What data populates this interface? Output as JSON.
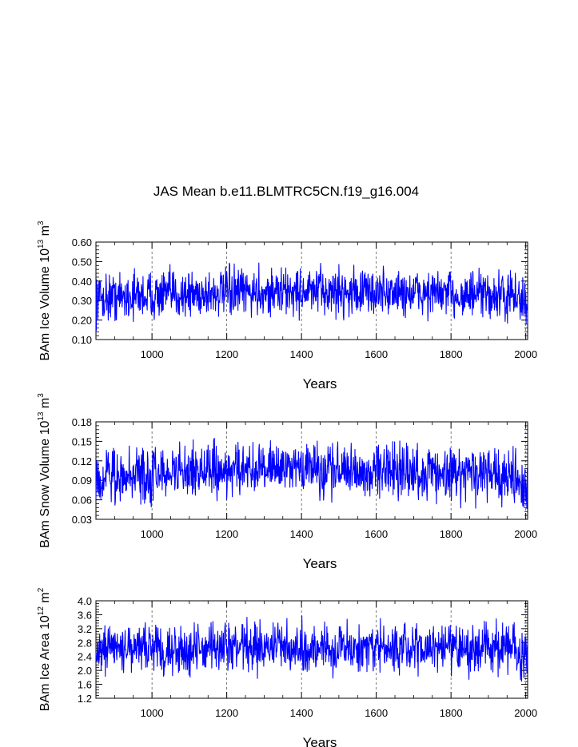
{
  "chart_data": {
    "type": "line",
    "title": "JAS Mean b.e11.BLMTRC5CN.f19_g16.004",
    "line_color": "#0000ff",
    "grid": "vertical dashed at major x ticks",
    "xlim": [
      850,
      2005
    ],
    "panels": [
      {
        "ylabel_main": "BAm Ice Volume 10",
        "ylabel_exp": "13",
        "ylabel_unit": " m",
        "ylabel_unit_exp": "3",
        "xlabel": "Years",
        "ylim": [
          0.1,
          0.6
        ],
        "yticks": [
          "0.10",
          "0.20",
          "0.30",
          "0.40",
          "0.50",
          "0.60"
        ],
        "xticks": [
          "1000",
          "1200",
          "1400",
          "1600",
          "1800",
          "2000"
        ],
        "series_mean": 0.315,
        "series_amplitude": 0.17,
        "series_trend": 0.03,
        "series_min": 0.12,
        "series_max": 0.52
      },
      {
        "ylabel_main": "BAm Snow Volume 10",
        "ylabel_exp": "13",
        "ylabel_unit": " m",
        "ylabel_unit_exp": "3",
        "xlabel": "Years",
        "ylim": [
          0.03,
          0.18
        ],
        "yticks": [
          "0.03",
          "0.06",
          "0.09",
          "0.12",
          "0.15",
          "0.18"
        ],
        "xticks": [
          "1000",
          "1200",
          "1400",
          "1600",
          "1800",
          "2000"
        ],
        "series_mean": 0.095,
        "series_amplitude": 0.055,
        "series_trend": 0.012,
        "series_min": 0.033,
        "series_max": 0.165
      },
      {
        "ylabel_main": "BAm Ice Area 10",
        "ylabel_exp": "12",
        "ylabel_unit": " m",
        "ylabel_unit_exp": "2",
        "xlabel": "Years",
        "ylim": [
          1.2,
          4.0
        ],
        "yticks": [
          "1.2",
          "1.6",
          "2.0",
          "2.4",
          "2.8",
          "3.2",
          "3.6",
          "4.0"
        ],
        "xticks": [
          "1000",
          "1200",
          "1400",
          "1600",
          "1800",
          "2000"
        ],
        "series_mean": 2.6,
        "series_amplitude": 0.95,
        "series_trend": 0.05,
        "series_min": 1.3,
        "series_max": 3.6
      }
    ]
  }
}
